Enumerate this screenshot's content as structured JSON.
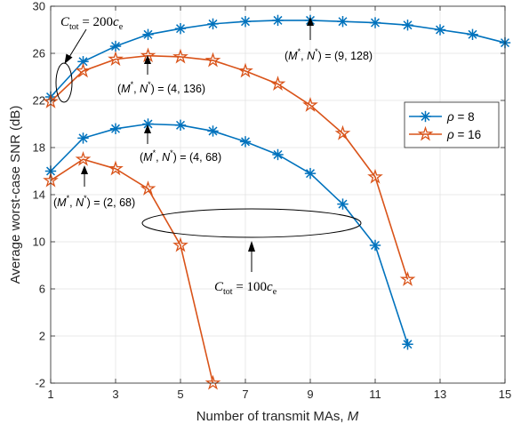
{
  "chart_data": {
    "type": "line",
    "xlabel": "Number of transmit MAs, M",
    "ylabel": "Average worst-case SNR (dB)",
    "xlim": [
      1,
      15
    ],
    "ylim": [
      -2,
      30
    ],
    "xticks": [
      1,
      3,
      5,
      7,
      9,
      11,
      13,
      15
    ],
    "yticks": [
      -2,
      2,
      6,
      10,
      14,
      18,
      22,
      26,
      30
    ],
    "grid": true,
    "legend_position": "right",
    "series": [
      {
        "group": "Ctot=200ce",
        "legend": "rho=8",
        "name": "ρ = 8",
        "color": "#0072BD",
        "marker": "asterisk",
        "x": [
          1,
          2,
          3,
          4,
          5,
          6,
          7,
          8,
          9,
          10,
          11,
          12,
          13,
          14,
          15
        ],
        "y": [
          22.3,
          25.3,
          26.6,
          27.6,
          28.1,
          28.5,
          28.7,
          28.8,
          28.8,
          28.7,
          28.6,
          28.4,
          28.0,
          27.6,
          26.9
        ]
      },
      {
        "group": "Ctot=200ce",
        "legend": "rho=16",
        "name": "ρ = 16",
        "color": "#D95319",
        "marker": "pentagram",
        "x": [
          1,
          2,
          3,
          4,
          5,
          6,
          7,
          8,
          9,
          10,
          11,
          12
        ],
        "y": [
          21.9,
          24.5,
          25.5,
          25.8,
          25.7,
          25.4,
          24.5,
          23.4,
          21.6,
          19.2,
          15.5,
          6.8
        ]
      },
      {
        "group": "Ctot=100ce",
        "legend": "rho=8",
        "name": "ρ = 8",
        "color": "#0072BD",
        "marker": "asterisk",
        "x": [
          1,
          2,
          3,
          4,
          5,
          6,
          7,
          8,
          9,
          10,
          11,
          12
        ],
        "y": [
          16.0,
          18.8,
          19.6,
          20.0,
          19.9,
          19.4,
          18.5,
          17.4,
          15.8,
          13.2,
          9.7,
          1.3
        ]
      },
      {
        "group": "Ctot=100ce",
        "legend": "rho=16",
        "name": "ρ = 16",
        "color": "#D95319",
        "marker": "pentagram",
        "x": [
          1,
          2,
          3,
          4,
          5,
          6
        ],
        "y": [
          15.2,
          17.0,
          16.2,
          14.5,
          9.7,
          -2.0
        ]
      }
    ],
    "annotations": [
      {
        "id": "opt_200_rho8",
        "text": "(M*, N*) = (9, 128)",
        "x": 9,
        "y": 28.8
      },
      {
        "id": "opt_200_rho16",
        "text": "(M*, N*) = (4, 136)",
        "x": 4,
        "y": 25.8
      },
      {
        "id": "opt_100_rho8",
        "text": "(M*, N*) = (4, 68)",
        "x": 4,
        "y": 20.0
      },
      {
        "id": "opt_100_rho16",
        "text": "(M*, N*) = (2, 68)",
        "x": 2,
        "y": 17.0
      },
      {
        "id": "ctot200",
        "text": "Ctot = 200ce"
      },
      {
        "id": "ctot100",
        "text": "Ctot = 100ce"
      }
    ]
  },
  "legend": {
    "items": [
      {
        "label": "ρ = 8",
        "color": "#0072BD",
        "marker": "asterisk"
      },
      {
        "label": "ρ = 16",
        "color": "#D95319",
        "marker": "pentagram"
      }
    ]
  },
  "labels": {
    "xlabel_text": "Number of transmit MAs, ",
    "xlabel_var": "M",
    "ylabel": "Average worst-case SNR (dB)",
    "ann_9_128": "(M*, N*) = (9, 128)",
    "ann_4_136": "(M*, N*) = (4, 136)",
    "ann_4_68": "(M*, N*) = (4, 68)",
    "ann_2_68": "(M*, N*) = (2, 68)",
    "ctot200": "Ctot = 200ce",
    "ctot100": "Ctot = 100ce"
  }
}
